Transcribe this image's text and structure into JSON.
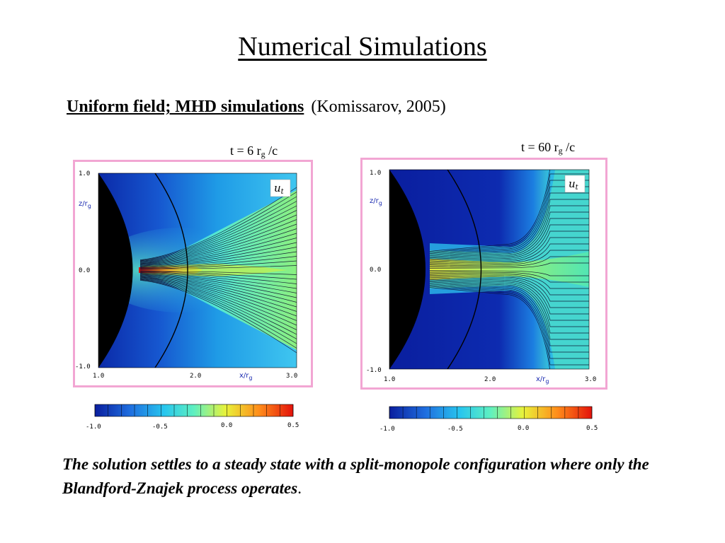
{
  "slide": {
    "title": "Numerical Simulations",
    "subtitle_bold": "Uniform field; MHD simulations",
    "subtitle_ref": "(Komissarov, 2005)",
    "caption": "The solution settles to a steady state with a split-monopole configuration where only the Blandford-Znajek process operates",
    "caption_end": "."
  },
  "panels": [
    {
      "time_prefix": "t = 6 r",
      "time_sub": "g",
      "time_suffix": " /c",
      "quantity_label": "u",
      "quantity_sub": "t",
      "y_axis_label": "z/r",
      "y_axis_sub": "g",
      "x_axis_label": "x/r",
      "x_axis_sub": "g",
      "y_ticks": [
        "1.0",
        "0.0",
        "-1.0"
      ],
      "x_ticks": [
        "1.0",
        "2.0",
        "3.0"
      ],
      "colorbar_ticks": [
        "-1.0",
        "-0.5",
        "0.0",
        "0.5"
      ]
    },
    {
      "time_prefix": "t = 60 r",
      "time_sub": "g",
      "time_suffix": " /c",
      "quantity_label": "u",
      "quantity_sub": "t",
      "y_axis_label": "z/r",
      "y_axis_sub": "g",
      "x_axis_label": "x/r",
      "x_axis_sub": "g",
      "y_ticks": [
        "1.0",
        "0.0",
        "-1.0"
      ],
      "x_ticks": [
        "1.0",
        "2.0",
        "3.0"
      ],
      "colorbar_ticks": [
        "-1.0",
        "-0.5",
        "0.0",
        "0.5"
      ]
    }
  ],
  "colors": {
    "frame_border": "#f2a6d3",
    "colormap": [
      "#0a1e9e",
      "#1f6fe0",
      "#28c6ee",
      "#5ff0c0",
      "#e8f23a",
      "#ff8c1a",
      "#e3120b"
    ]
  }
}
